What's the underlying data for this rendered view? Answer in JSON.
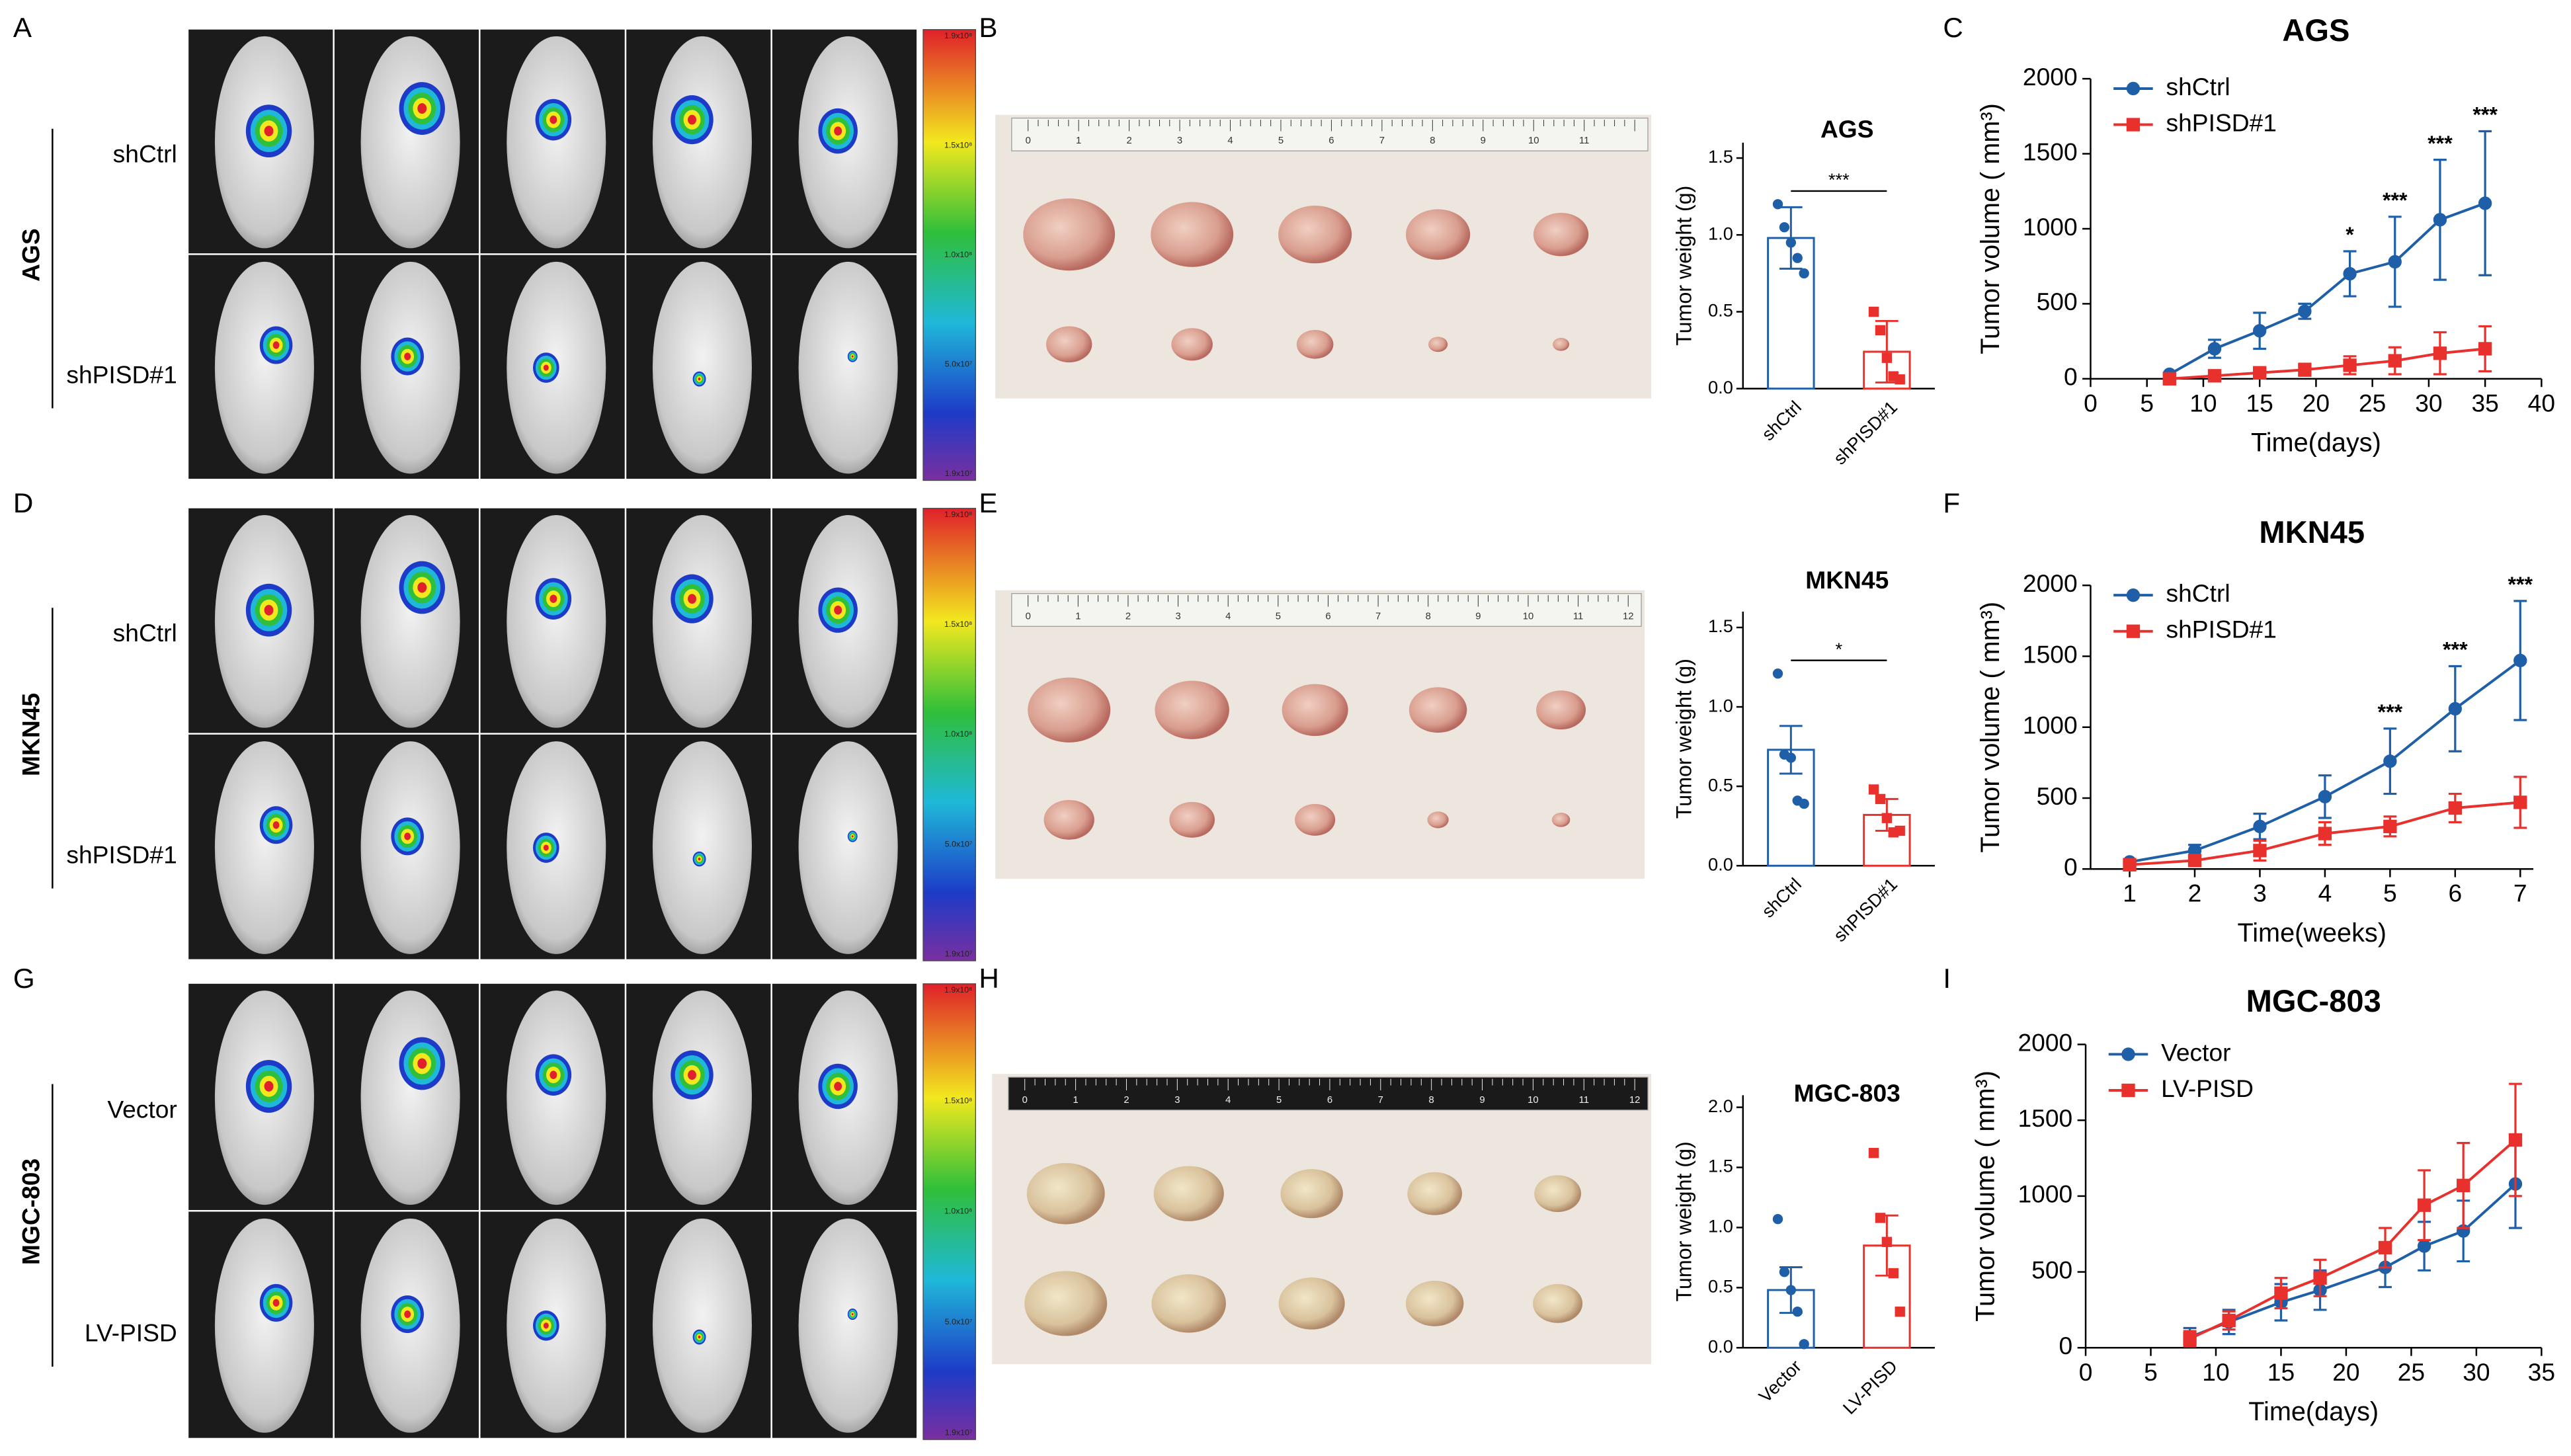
{
  "panel_labels": [
    "A",
    "B",
    "C",
    "D",
    "E",
    "F",
    "G",
    "H",
    "I"
  ],
  "imaging": [
    {
      "cell_line": "AGS",
      "groups": [
        "shCtrl",
        "shPISD#1"
      ]
    },
    {
      "cell_line": "MKN45",
      "groups": [
        "shCtrl",
        "shPISD#1"
      ]
    },
    {
      "cell_line": "MGC-803",
      "groups": [
        "Vector",
        "LV-PISD"
      ]
    }
  ],
  "colorbar_ticks": [
    "1.9x10⁸",
    "1.5x10⁸",
    "1.0x10⁸",
    "5.0x10⁷",
    "1.9x10⁷"
  ],
  "ruler_labels": [
    "0",
    "1",
    "2",
    "3",
    "4",
    "5",
    "6",
    "7",
    "8",
    "9",
    "10",
    "11",
    "12"
  ],
  "chart_data": [
    {
      "type": "bar",
      "title": "AGS",
      "ylabel": "Tumor weight (g)",
      "categories": [
        "shCtrl",
        "shPISD#1"
      ],
      "colors": [
        "#1f5fa8",
        "#e8312d"
      ],
      "markers": [
        "circle",
        "square"
      ],
      "values": [
        0.98,
        0.24
      ],
      "errors": [
        0.2,
        0.2
      ],
      "points": [
        [
          1.2,
          1.05,
          0.95,
          0.85,
          0.75
        ],
        [
          0.5,
          0.38,
          0.2,
          0.08,
          0.06
        ]
      ],
      "significance": "***",
      "ylim": [
        0,
        1.6
      ],
      "yticks": [
        {
          "value": 0,
          "label": "0.0"
        },
        0.5,
        {
          "value": 1,
          "label": "1.0"
        },
        1.5
      ]
    },
    {
      "type": "line",
      "title": "AGS",
      "xlabel": "Time(days)",
      "ylabel": "Tumor volume ( mm³)",
      "x": [
        7,
        11,
        15,
        19,
        23,
        27,
        31,
        35
      ],
      "series": [
        {
          "name": "shCtrl",
          "color": "#1f5fa8",
          "marker": "circle",
          "values": [
            30,
            200,
            320,
            450,
            700,
            780,
            1060,
            1170
          ],
          "errors": [
            10,
            60,
            120,
            50,
            150,
            300,
            400,
            480
          ]
        },
        {
          "name": "shPISD#1",
          "color": "#e8312d",
          "marker": "square",
          "values": [
            0,
            20,
            40,
            60,
            90,
            120,
            170,
            200
          ],
          "errors": [
            5,
            10,
            20,
            40,
            60,
            90,
            140,
            150
          ]
        }
      ],
      "annotations": [
        {
          "x": 23,
          "text": "*"
        },
        {
          "x": 27,
          "text": "***"
        },
        {
          "x": 31,
          "text": "***"
        },
        {
          "x": 35,
          "text": "***"
        }
      ],
      "xlim": [
        0,
        40
      ],
      "xticks": [
        0,
        5,
        10,
        15,
        20,
        25,
        30,
        35,
        40
      ],
      "ylim": [
        0,
        2000
      ],
      "yticks": [
        0,
        500,
        1000,
        1500,
        2000
      ]
    },
    {
      "type": "bar",
      "title": "MKN45",
      "ylabel": "Tumor weight (g)",
      "categories": [
        "shCtrl",
        "shPISD#1"
      ],
      "colors": [
        "#1f5fa8",
        "#e8312d"
      ],
      "markers": [
        "circle",
        "square"
      ],
      "values": [
        0.73,
        0.32
      ],
      "errors": [
        0.15,
        0.1
      ],
      "points": [
        [
          1.21,
          0.7,
          0.68,
          0.41,
          0.39
        ],
        [
          0.48,
          0.42,
          0.3,
          0.21,
          0.22
        ]
      ],
      "significance": "*",
      "ylim": [
        0,
        1.6
      ],
      "yticks": [
        {
          "value": 0,
          "label": "0.0"
        },
        0.5,
        {
          "value": 1,
          "label": "1.0"
        },
        1.5
      ]
    },
    {
      "type": "line",
      "title": "MKN45",
      "xlabel": "Time(weeks)",
      "ylabel": "Tumor volume ( mm³)",
      "x": [
        1,
        2,
        3,
        4,
        5,
        6,
        7
      ],
      "series": [
        {
          "name": "shCtrl",
          "color": "#1f5fa8",
          "marker": "circle",
          "values": [
            50,
            130,
            300,
            510,
            760,
            1130,
            1470
          ],
          "errors": [
            20,
            40,
            90,
            150,
            230,
            300,
            420
          ]
        },
        {
          "name": "shPISD#1",
          "color": "#e8312d",
          "marker": "square",
          "values": [
            30,
            60,
            130,
            250,
            300,
            430,
            470
          ],
          "errors": [
            10,
            30,
            70,
            80,
            70,
            100,
            180
          ]
        }
      ],
      "annotations": [
        {
          "x": 5,
          "text": "***"
        },
        {
          "x": 6,
          "text": "***"
        },
        {
          "x": 7,
          "text": "***"
        }
      ],
      "xlim": [
        0.4,
        7.2
      ],
      "xticks": [
        1,
        2,
        3,
        4,
        5,
        6,
        7
      ],
      "ylim": [
        0,
        2000
      ],
      "yticks": [
        0,
        500,
        1000,
        1500,
        2000
      ]
    },
    {
      "type": "bar",
      "title": "MGC-803",
      "ylabel": "Tumor weight (g)",
      "categories": [
        "Vector",
        "LV-PISD"
      ],
      "colors": [
        "#1f5fa8",
        "#e8312d"
      ],
      "markers": [
        "circle",
        "square"
      ],
      "values": [
        0.48,
        0.85
      ],
      "errors": [
        0.19,
        0.25
      ],
      "points": [
        [
          1.07,
          0.63,
          0.48,
          0.3,
          0.03
        ],
        [
          1.62,
          1.08,
          0.88,
          0.62,
          0.3
        ]
      ],
      "ylim": [
        0,
        2.1
      ],
      "yticks": [
        {
          "value": 0,
          "label": "0.0"
        },
        0.5,
        {
          "value": 1,
          "label": "1.0"
        },
        1.5,
        {
          "value": 2,
          "label": "2.0"
        }
      ]
    },
    {
      "type": "line",
      "title": "MGC-803",
      "xlabel": "Time(days)",
      "ylabel": "Tumor volume ( mm³)",
      "x": [
        8,
        11,
        15,
        18,
        23,
        26,
        29,
        33
      ],
      "series": [
        {
          "name": "Vector",
          "color": "#1f5fa8",
          "marker": "circle",
          "values": [
            70,
            170,
            300,
            380,
            530,
            670,
            770,
            1080
          ],
          "errors": [
            60,
            80,
            120,
            130,
            130,
            160,
            200,
            290
          ]
        },
        {
          "name": "LV-PISD",
          "color": "#e8312d",
          "marker": "square",
          "values": [
            60,
            180,
            360,
            460,
            660,
            940,
            1070,
            1370
          ],
          "errors": [
            50,
            60,
            100,
            120,
            130,
            230,
            280,
            370
          ]
        }
      ],
      "xlim": [
        0,
        35
      ],
      "xticks": [
        0,
        5,
        10,
        15,
        20,
        25,
        30,
        35
      ],
      "ylim": [
        0,
        2000
      ],
      "yticks": [
        0,
        500,
        1000,
        1500,
        2000
      ]
    }
  ]
}
